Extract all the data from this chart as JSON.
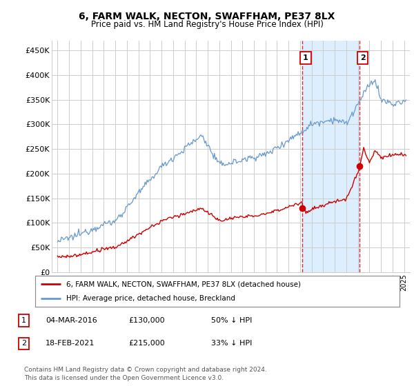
{
  "title": "6, FARM WALK, NECTON, SWAFFHAM, PE37 8LX",
  "subtitle": "Price paid vs. HM Land Registry's House Price Index (HPI)",
  "ylabel_ticks": [
    "£0",
    "£50K",
    "£100K",
    "£150K",
    "£200K",
    "£250K",
    "£300K",
    "£350K",
    "£400K",
    "£450K"
  ],
  "ytick_values": [
    0,
    50000,
    100000,
    150000,
    200000,
    250000,
    300000,
    350000,
    400000,
    450000
  ],
  "ylim": [
    0,
    470000
  ],
  "xlim_start": 1994.5,
  "xlim_end": 2025.5,
  "legend_line1": "6, FARM WALK, NECTON, SWAFFHAM, PE37 8LX (detached house)",
  "legend_line2": "HPI: Average price, detached house, Breckland",
  "line1_color": "#cc0000",
  "line2_color": "#6699cc",
  "marker1_date": 2016.17,
  "marker1_value": 130000,
  "marker1_label": "1",
  "marker2_date": 2021.12,
  "marker2_value": 215000,
  "marker2_label": "2",
  "table_row1": [
    "1",
    "04-MAR-2016",
    "£130,000",
    "50% ↓ HPI"
  ],
  "table_row2": [
    "2",
    "18-FEB-2021",
    "£215,000",
    "33% ↓ HPI"
  ],
  "footnote": "Contains HM Land Registry data © Crown copyright and database right 2024.\nThis data is licensed under the Open Government Licence v3.0.",
  "vline1_x": 2016.17,
  "vline2_x": 2021.12,
  "background_color": "#ffffff",
  "plot_bg_color": "#ffffff",
  "grid_color": "#cccccc",
  "span_color": "#ddeeff"
}
